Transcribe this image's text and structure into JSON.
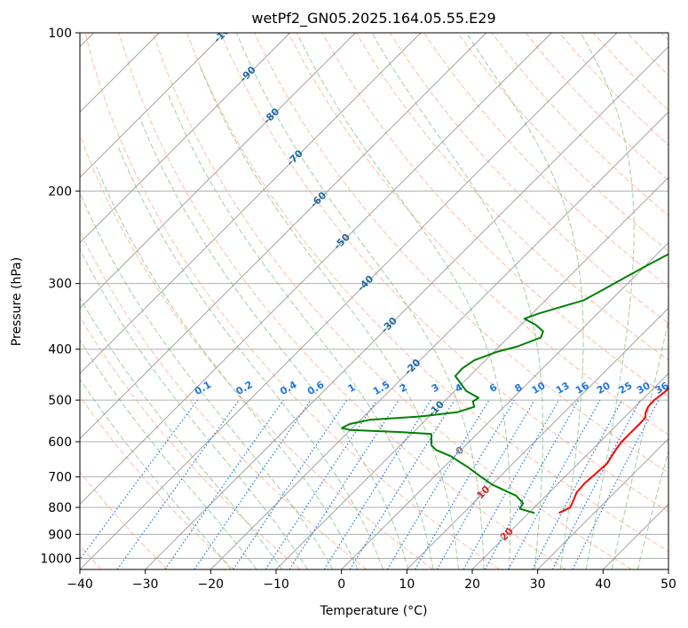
{
  "chart_data": {
    "type": "line",
    "title": "wetPf2_GN05.2025.164.05.55.E29",
    "xlabel": "Temperature (°C)",
    "ylabel": "Pressure (hPa)",
    "xlim": [
      -40,
      50
    ],
    "ylim": [
      1050,
      100
    ],
    "y_scale": "log",
    "grid": true,
    "x_ticks": [
      "−40",
      "−30",
      "−20",
      "−10",
      "0",
      "10",
      "20",
      "30",
      "40",
      "50"
    ],
    "y_ticks": [
      "100",
      "200",
      "300",
      "400",
      "500",
      "600",
      "700",
      "800",
      "900",
      "1000"
    ],
    "series": [
      {
        "color": "#ff0000",
        "points": [
          [
            24.6,
            820
          ],
          [
            25.5,
            800
          ],
          [
            25.0,
            780
          ],
          [
            24.2,
            750
          ],
          [
            24.0,
            720
          ],
          [
            24.2,
            690
          ],
          [
            24.4,
            660
          ],
          [
            24.0,
            640
          ],
          [
            23.6,
            620
          ],
          [
            23.3,
            600
          ],
          [
            23.3,
            575
          ],
          [
            23.3,
            555
          ],
          [
            23.2,
            540
          ],
          [
            22.5,
            528
          ],
          [
            22.0,
            515
          ],
          [
            21.9,
            500
          ],
          [
            22.3,
            480
          ],
          [
            22.2,
            460
          ],
          [
            21.8,
            440
          ],
          [
            21.1,
            420
          ],
          [
            20.4,
            400
          ],
          [
            19.4,
            380
          ],
          [
            18.4,
            360
          ],
          [
            16.7,
            330
          ],
          [
            15.4,
            310
          ],
          [
            13.4,
            285
          ],
          [
            11.1,
            260
          ],
          [
            8.5,
            238
          ],
          [
            6.6,
            220
          ],
          [
            5.2,
            205
          ],
          [
            4.3,
            192
          ],
          [
            3.9,
            182
          ],
          [
            4.6,
            175
          ],
          [
            5.9,
            167
          ],
          [
            6.5,
            160
          ],
          [
            6.0,
            152
          ],
          [
            4.6,
            145
          ],
          [
            3.9,
            138
          ],
          [
            3.6,
            131
          ],
          [
            3.0,
            124
          ],
          [
            2.2,
            117
          ],
          [
            1.6,
            110
          ],
          [
            1.4,
            106
          ],
          [
            1.3,
            100
          ]
        ]
      },
      {
        "color": "#008000",
        "points": [
          [
            20.9,
            820
          ],
          [
            18.0,
            805
          ],
          [
            17.6,
            785
          ],
          [
            15.4,
            760
          ],
          [
            10.2,
            725
          ],
          [
            7.2,
            700
          ],
          [
            4.8,
            680
          ],
          [
            3.6,
            670
          ],
          [
            1.8,
            657
          ],
          [
            -0.5,
            640
          ],
          [
            -3.8,
            622
          ],
          [
            -5.2,
            610
          ],
          [
            -6.2,
            593
          ],
          [
            -7.0,
            580
          ],
          [
            -12.0,
            575
          ],
          [
            -20.0,
            570
          ],
          [
            -21.6,
            565
          ],
          [
            -21.0,
            555
          ],
          [
            -18.6,
            545
          ],
          [
            -11.3,
            537
          ],
          [
            -6.3,
            527
          ],
          [
            -4.6,
            515
          ],
          [
            -5.6,
            503
          ],
          [
            -5.3,
            495
          ],
          [
            -8.3,
            480
          ],
          [
            -10.2,
            465
          ],
          [
            -12.2,
            450
          ],
          [
            -12.3,
            435
          ],
          [
            -11.7,
            420
          ],
          [
            -9.6,
            405
          ],
          [
            -7.2,
            395
          ],
          [
            -5.0,
            380
          ],
          [
            -5.6,
            370
          ],
          [
            -7.6,
            360
          ],
          [
            -10.4,
            350
          ],
          [
            -9.0,
            342
          ],
          [
            -6.5,
            332
          ],
          [
            -4.2,
            323
          ],
          [
            -2.6,
            306
          ],
          [
            -1.2,
            291
          ],
          [
            0.1,
            278
          ],
          [
            1.6,
            265
          ],
          [
            2.8,
            255
          ],
          [
            4.3,
            243
          ],
          [
            5.0,
            233
          ],
          [
            4.7,
            225
          ],
          [
            2.9,
            216
          ],
          [
            2.2,
            205
          ],
          [
            2.1,
            195
          ],
          [
            0.5,
            187
          ],
          [
            -2.8,
            180
          ],
          [
            -5.2,
            175
          ],
          [
            -5.6,
            170
          ],
          [
            -4.5,
            164
          ],
          [
            -2.6,
            158
          ],
          [
            -1.8,
            151
          ],
          [
            -0.9,
            143
          ],
          [
            -0.3,
            134
          ],
          [
            0.4,
            125
          ],
          [
            1.6,
            118
          ],
          [
            1.5,
            110
          ],
          [
            1.5,
            100
          ]
        ]
      }
    ],
    "isotherm_labels": [
      "-100",
      "-90",
      "-80",
      "-70",
      "-60",
      "-50",
      "-40",
      "-30",
      "-20",
      "-10",
      "0",
      "10",
      "20",
      "30",
      "40"
    ],
    "mixing_ratio_labels": [
      "0.1",
      "0.2",
      "0.4",
      "0.6",
      "1",
      "1.5",
      "2",
      "3",
      "4",
      "6",
      "8",
      "10",
      "13",
      "16",
      "20",
      "25",
      "30",
      "36"
    ],
    "colors": {
      "temperature": "#ff0000",
      "dewpoint": "#008000",
      "grid": "#b0b0b0",
      "isotherm": "#999999",
      "dry_adiabat": "#ff9977",
      "moist_adiabat": "#77bb77",
      "mixing_ratio": "#1f77e0",
      "isotherm_label_cold": "#1f6aa5",
      "isotherm_label_zero": "#808080",
      "isotherm_label_warm": "#d62728"
    }
  }
}
